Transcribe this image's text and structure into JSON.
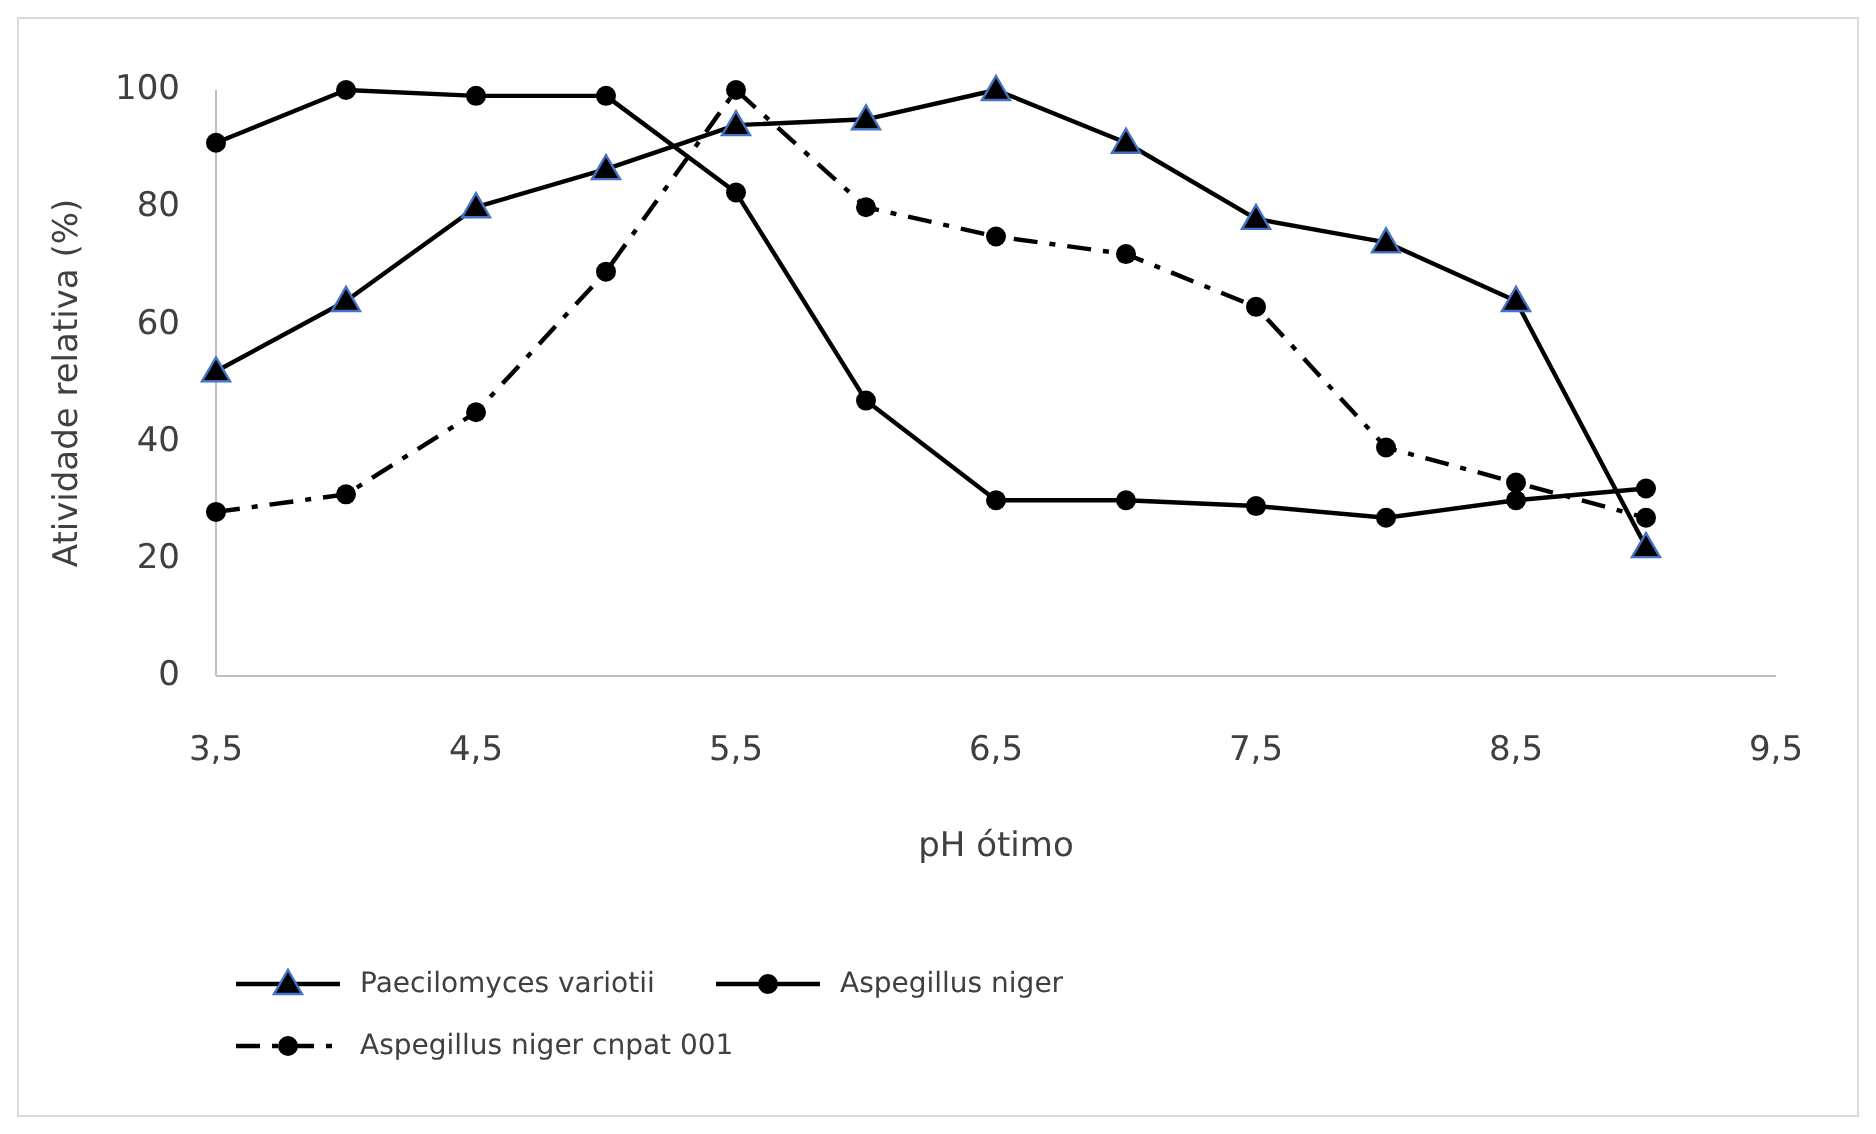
{
  "chart_data": {
    "type": "line",
    "xlabel": "pH ótimo",
    "ylabel": "Atividade relativa (%)",
    "x": [
      3.5,
      4,
      4.5,
      5,
      5.5,
      6,
      6.5,
      7,
      7.5,
      8,
      8.5,
      9
    ],
    "xlim": [
      3.5,
      9.5
    ],
    "xticks": [
      {
        "value": 3.5,
        "label": "3,5"
      },
      {
        "value": 4.5,
        "label": "4,5"
      },
      {
        "value": 5.5,
        "label": "5,5"
      },
      {
        "value": 6.5,
        "label": "6,5"
      },
      {
        "value": 7.5,
        "label": "7,5"
      },
      {
        "value": 8.5,
        "label": "8,5"
      },
      {
        "value": 9.5,
        "label": "9,5"
      }
    ],
    "ylim": [
      0,
      100
    ],
    "yticks": [
      0,
      20,
      40,
      60,
      80,
      100
    ],
    "grid": false,
    "legend": "bottom",
    "series": [
      {
        "name": "Paecilomyces variotii",
        "color": "#000000",
        "marker": "triangle",
        "line_style": "solid",
        "values": [
          52,
          64,
          80,
          86.5,
          94,
          95,
          100,
          91,
          78,
          74,
          64,
          22
        ]
      },
      {
        "name": "Aspegillus niger",
        "color": "#000000",
        "marker": "circle",
        "line_style": "solid",
        "values": [
          91,
          100,
          99,
          99,
          82.5,
          47,
          30,
          30,
          29,
          27,
          30,
          32
        ]
      },
      {
        "name": "Aspegillus niger cnpat 001",
        "color": "#000000",
        "marker": "circle",
        "line_style": "dashed",
        "values": [
          28,
          31,
          45,
          69,
          100,
          80,
          75,
          72,
          63,
          39,
          33,
          27
        ]
      }
    ]
  }
}
